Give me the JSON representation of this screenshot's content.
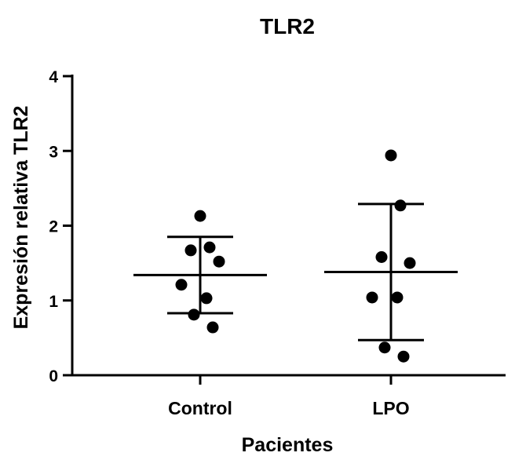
{
  "chart_data": {
    "type": "scatter",
    "title": "TLR2",
    "xlabel": "Pacientes",
    "ylabel": "Expresión relativa TLR2",
    "ylim": [
      0,
      4
    ],
    "yticks": [
      "0",
      "1",
      "2",
      "3",
      "4"
    ],
    "grid": false,
    "categories": [
      "Control",
      "LPO"
    ],
    "groups": [
      {
        "name": "Control",
        "points": [
          2.13,
          1.71,
          1.67,
          1.52,
          1.21,
          1.03,
          0.81,
          0.64
        ],
        "mean": 1.34,
        "sd_upper": 1.85,
        "sd_lower": 0.83
      },
      {
        "name": "LPO",
        "points": [
          2.94,
          2.27,
          1.58,
          1.5,
          1.04,
          1.04,
          0.37,
          0.25
        ],
        "mean": 1.38,
        "sd_upper": 2.29,
        "sd_lower": 0.47
      }
    ]
  }
}
